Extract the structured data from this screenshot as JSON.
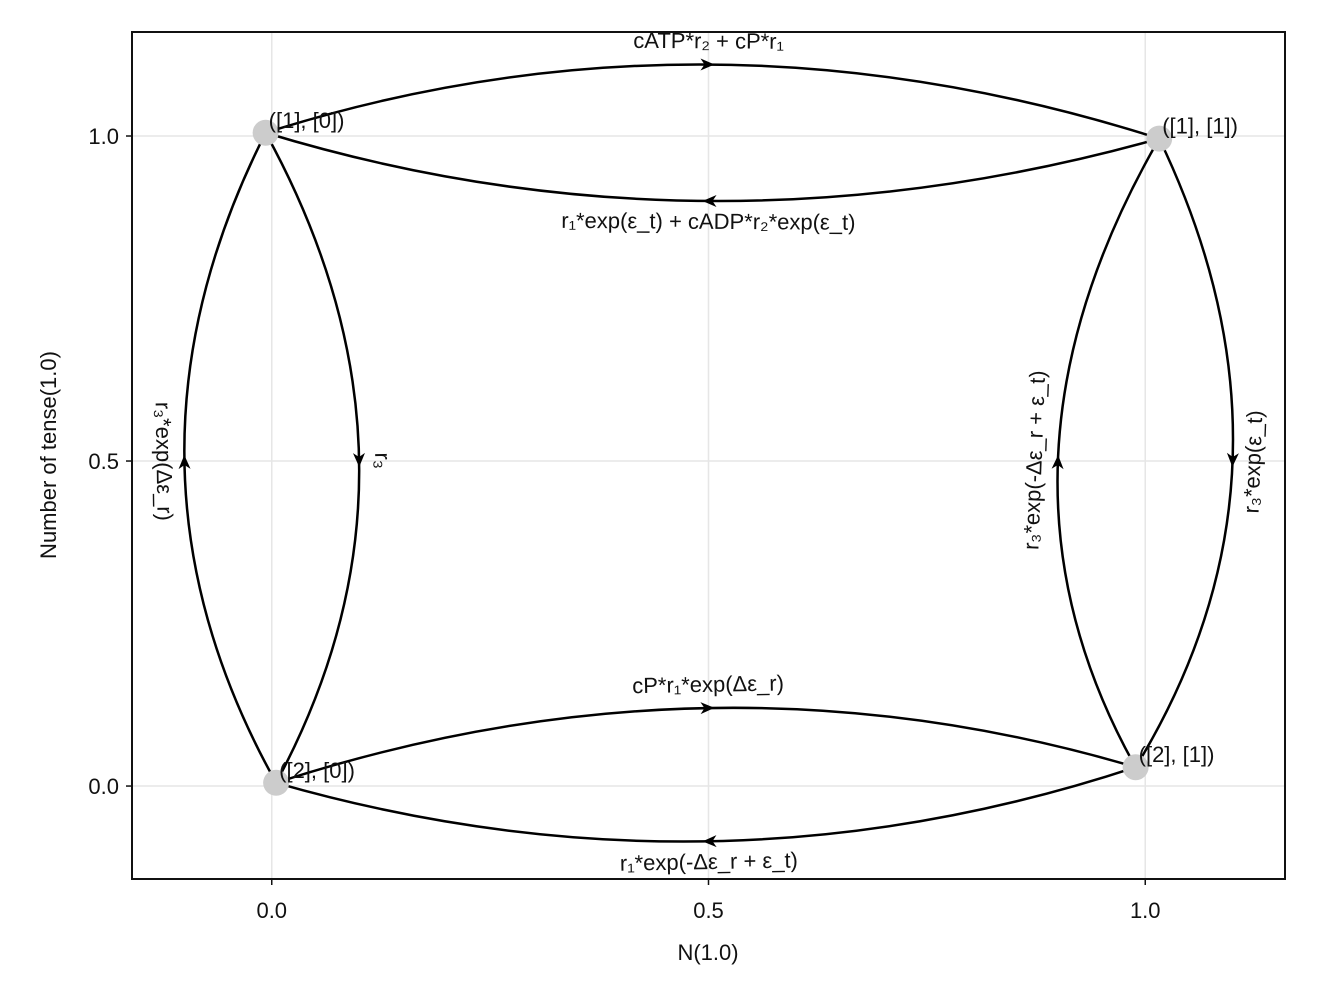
{
  "chart_data": {
    "type": "network",
    "xlabel": "N(1.0)",
    "ylabel": "Number of tense(1.0)",
    "xlim": [
      -0.16,
      1.16
    ],
    "ylim": [
      -0.143,
      1.16
    ],
    "x_ticks": [
      0.0,
      0.5,
      1.0
    ],
    "y_ticks": [
      0.0,
      0.5,
      1.0
    ],
    "x_tick_labels": [
      "0.0",
      "0.5",
      "1.0"
    ],
    "y_tick_labels": [
      "0.0",
      "0.5",
      "1.0"
    ],
    "grid": true,
    "node_color": "#cccccc",
    "edge_color": "#000000",
    "nodes": [
      {
        "id": "A",
        "label": "([1], [0])",
        "x": -0.007,
        "y": 1.005
      },
      {
        "id": "B",
        "label": "([1], [1])",
        "x": 1.016,
        "y": 0.996
      },
      {
        "id": "C",
        "label": "([2], [0])",
        "x": 0.005,
        "y": 0.005
      },
      {
        "id": "D",
        "label": "([2], [1])",
        "x": 0.989,
        "y": 0.029
      }
    ],
    "edges": [
      {
        "from": "A",
        "to": "B",
        "label": "cATP*r₂ + cP*r₁",
        "mid": [
          0.5,
          1.11
        ]
      },
      {
        "from": "B",
        "to": "A",
        "label": "r₁*exp(ε_t) + cADP*r₂*exp(ε_t)",
        "mid": [
          0.5,
          0.9
        ]
      },
      {
        "from": "A",
        "to": "C",
        "label": "r₃",
        "mid": [
          0.1,
          0.5
        ]
      },
      {
        "from": "C",
        "to": "A",
        "label": "r₃*exp(Δε_r)",
        "mid": [
          -0.1,
          0.5
        ]
      },
      {
        "from": "B",
        "to": "D",
        "label": "r₃*exp(ε_t)",
        "mid": [
          1.1,
          0.5
        ]
      },
      {
        "from": "D",
        "to": "B",
        "label": "r₃*exp(-Δε_r + ε_t)",
        "mid": [
          0.9,
          0.5
        ]
      },
      {
        "from": "C",
        "to": "D",
        "label": "cP*r₁*exp(Δε_r)",
        "mid": [
          0.5,
          0.12
        ]
      },
      {
        "from": "D",
        "to": "C",
        "label": "r₁*exp(-Δε_r + ε_t)",
        "mid": [
          0.5,
          -0.085
        ]
      }
    ]
  }
}
